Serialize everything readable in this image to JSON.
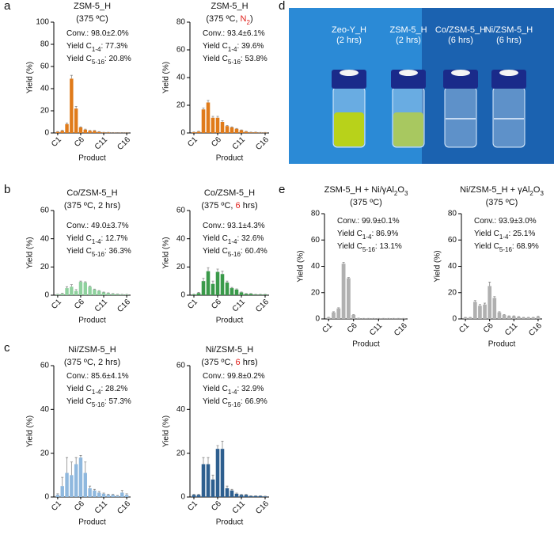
{
  "panel_labels": [
    "a",
    "b",
    "c",
    "d",
    "e"
  ],
  "photo": {
    "labels": [
      [
        "Zeo-Y_H",
        "(2 hrs)"
      ],
      [
        "ZSM-5_H",
        "(2 hrs)"
      ],
      [
        "Co/ZSM-5_H",
        "(6 hrs)"
      ],
      [
        "Ni/ZSM-5_H",
        "(6 hrs)"
      ]
    ]
  },
  "chart_data": [
    {
      "type": "bar",
      "title": [
        "ZSM-5_H",
        "(375 ºC)"
      ],
      "annotations": [
        "Conv.: 98.0±2.0%",
        [
          "Yield C",
          {
            "text": "1-4",
            "sub": true
          },
          ": 77.3%"
        ],
        [
          "Yield C",
          {
            "text": "5-16",
            "sub": true
          },
          ": 20.8%"
        ]
      ],
      "categories": [
        "C1",
        null,
        null,
        null,
        null,
        "C6",
        null,
        null,
        null,
        null,
        "C11",
        null,
        null,
        null,
        null,
        "C16"
      ],
      "values": [
        1,
        2,
        8,
        49,
        22,
        5,
        3,
        2,
        2,
        1,
        0.5,
        0.5,
        0.3,
        0.3,
        0.3,
        0.3
      ],
      "errors": [
        0.3,
        0.5,
        1,
        3,
        2,
        0.5,
        0.5,
        0.3,
        0.3,
        0.2,
        0.1,
        0.1,
        0.1,
        0.1,
        0.1,
        0.1
      ],
      "color": "#e07b1a",
      "ylim": [
        0,
        100
      ],
      "yticks": [
        0,
        20,
        40,
        60,
        80,
        100
      ],
      "xlabel": "Product",
      "ylabel": "Yield (%)"
    },
    {
      "type": "bar",
      "title": [
        "ZSM-5_H",
        [
          "(375 ºC, ",
          {
            "text": "N",
            "color": "#e0201b"
          },
          {
            "text": "2",
            "sub": true,
            "color": "#e0201b"
          },
          ")"
        ]
      ],
      "annotations": [
        "Conv.: 93.4±6.1%",
        [
          "Yield C",
          {
            "text": "1-4",
            "sub": true
          },
          ": 39.6%"
        ],
        [
          "Yield C",
          {
            "text": "5-16",
            "sub": true
          },
          ": 53.8%"
        ]
      ],
      "categories": [
        "C1",
        null,
        null,
        null,
        null,
        "C6",
        null,
        null,
        null,
        null,
        "C11",
        null,
        null,
        null,
        null,
        "C16"
      ],
      "values": [
        0.5,
        1,
        17,
        22,
        11,
        11,
        8,
        5,
        4,
        3,
        2,
        1,
        0.5,
        0.5,
        0.3,
        0.3
      ],
      "errors": [
        0.2,
        0.3,
        1,
        1.5,
        1,
        1,
        0.8,
        0.5,
        0.4,
        0.3,
        0.2,
        0.2,
        0.1,
        0.1,
        0.1,
        0.1
      ],
      "color": "#e07b1a",
      "ylim": [
        0,
        80
      ],
      "yticks": [
        0,
        20,
        40,
        60,
        80
      ],
      "xlabel": "Product",
      "ylabel": "Yield (%)"
    },
    {
      "type": "bar",
      "title": [
        "Co/ZSM-5_H",
        "(375 ºC, 2 hrs)"
      ],
      "annotations": [
        "Conv.: 49.0±3.7%",
        [
          "Yield C",
          {
            "text": "1-4",
            "sub": true
          },
          ": 12.7%"
        ],
        [
          "Yield C",
          {
            "text": "5-16",
            "sub": true
          },
          ": 36.3%"
        ]
      ],
      "categories": [
        "C1",
        null,
        null,
        null,
        null,
        "C6",
        null,
        null,
        null,
        null,
        "C11",
        null,
        null,
        null,
        null,
        "C16"
      ],
      "values": [
        0.5,
        1,
        5,
        6,
        3,
        9.5,
        9,
        6,
        4,
        3,
        2,
        1.5,
        1,
        0.8,
        0.5,
        0.5
      ],
      "errors": [
        0.2,
        0.3,
        1,
        1.5,
        1,
        0.5,
        0.5,
        0.5,
        0.3,
        0.3,
        0.2,
        0.2,
        0.1,
        0.1,
        0.1,
        0.1
      ],
      "color": "#8fd19e",
      "ylim": [
        0,
        60
      ],
      "yticks": [
        0,
        20,
        40,
        60
      ],
      "xlabel": "Product",
      "ylabel": "Yield (%)"
    },
    {
      "type": "bar",
      "title": [
        "Co/ZSM-5_H",
        [
          "(375 ºC, ",
          {
            "text": "6",
            "color": "#e0201b"
          },
          " hrs)"
        ]
      ],
      "annotations": [
        "Conv.: 93.1±4.3%",
        [
          "Yield C",
          {
            "text": "1-4",
            "sub": true
          },
          ": 32.6%"
        ],
        [
          "Yield C",
          {
            "text": "5-16",
            "sub": true
          },
          ": 60.4%"
        ]
      ],
      "categories": [
        "C1",
        null,
        null,
        null,
        null,
        "C6",
        null,
        null,
        null,
        null,
        "C11",
        null,
        null,
        null,
        null,
        "C16"
      ],
      "values": [
        0.5,
        1.5,
        10,
        17,
        8,
        16.5,
        15,
        9,
        5,
        4,
        2,
        1,
        1,
        0.5,
        0.5,
        0.5
      ],
      "errors": [
        0.2,
        0.5,
        2,
        2.5,
        2,
        2,
        2,
        1,
        0.5,
        0.5,
        0.3,
        0.2,
        0.2,
        0.1,
        0.1,
        0.1
      ],
      "color": "#3a9a4a",
      "ylim": [
        0,
        60
      ],
      "yticks": [
        0,
        20,
        40,
        60
      ],
      "xlabel": "Product",
      "ylabel": "Yield (%)"
    },
    {
      "type": "bar",
      "title": [
        "Ni/ZSM-5_H",
        "(375 ºC, 2 hrs)"
      ],
      "annotations": [
        "Conv.: 85.6±4.1%",
        [
          "Yield C",
          {
            "text": "1-4",
            "sub": true
          },
          ": 28.2%"
        ],
        [
          "Yield C",
          {
            "text": "5-16",
            "sub": true
          },
          ": 57.3%"
        ]
      ],
      "categories": [
        "C1",
        null,
        null,
        null,
        null,
        "C6",
        null,
        null,
        null,
        null,
        "C11",
        null,
        null,
        null,
        null,
        "C16"
      ],
      "values": [
        1,
        5,
        11,
        10,
        15,
        18,
        11,
        4,
        3,
        2,
        1.5,
        1,
        1,
        0.5,
        2,
        1
      ],
      "errors": [
        0.5,
        4,
        7,
        6,
        3,
        1,
        5,
        1,
        0.5,
        0.5,
        0.3,
        0.3,
        0.2,
        0.2,
        1,
        0.5
      ],
      "color": "#8fb8de",
      "ylim": [
        0,
        60
      ],
      "yticks": [
        0,
        20,
        40,
        60
      ],
      "xlabel": "Product",
      "ylabel": "Yield (%)"
    },
    {
      "type": "bar",
      "title": [
        "Ni/ZSM-5_H",
        [
          "(375 ºC, ",
          {
            "text": "6",
            "color": "#e0201b"
          },
          " hrs)"
        ]
      ],
      "annotations": [
        "Conv.: 99.8±0.2%",
        [
          "Yield C",
          {
            "text": "1-4",
            "sub": true
          },
          ": 32.9%"
        ],
        [
          "Yield C",
          {
            "text": "5-16",
            "sub": true
          },
          ": 66.9%"
        ]
      ],
      "categories": [
        "C1",
        null,
        null,
        null,
        null,
        "C6",
        null,
        null,
        null,
        null,
        "C11",
        null,
        null,
        null,
        null,
        "C16"
      ],
      "values": [
        1,
        1,
        15,
        15,
        8,
        22,
        22,
        4,
        3,
        1.5,
        1,
        1,
        0.5,
        0.5,
        0.5,
        0.3
      ],
      "errors": [
        0.3,
        0.3,
        3,
        3,
        2,
        1.5,
        3.5,
        1,
        0.5,
        0.3,
        0.2,
        0.2,
        0.1,
        0.1,
        0.1,
        0.1
      ],
      "color": "#2e5f8f",
      "ylim": [
        0,
        60
      ],
      "yticks": [
        0,
        20,
        40,
        60
      ],
      "xlabel": "Product",
      "ylabel": "Yield (%)"
    },
    {
      "type": "bar",
      "title": [
        [
          "ZSM-5_H + Ni/γAl",
          {
            "text": "2",
            "sub": true
          },
          "O",
          {
            "text": "3",
            "sub": true
          }
        ],
        "(375 ºC)"
      ],
      "annotations": [
        "Conv.: 99.9±0.1%",
        [
          "Yield C",
          {
            "text": "1-4",
            "sub": true
          },
          ": 86.9%"
        ],
        [
          "Yield C",
          {
            "text": "5-16",
            "sub": true
          },
          ": 13.1%"
        ]
      ],
      "categories": [
        "C1",
        null,
        null,
        null,
        null,
        "C6",
        null,
        null,
        null,
        null,
        "C11",
        null,
        null,
        null,
        null,
        "C16"
      ],
      "values": [
        1,
        5,
        8,
        42,
        31,
        3,
        0.5,
        0.3,
        0.3,
        0.3,
        0.3,
        0.3,
        0.3,
        0.3,
        0.3,
        0.3
      ],
      "errors": [
        0.3,
        0.5,
        0.5,
        1,
        0.5,
        0.3,
        0.1,
        0.1,
        0.1,
        0.1,
        0.1,
        0.1,
        0.1,
        0.1,
        0.1,
        0.1
      ],
      "color": "#b0b0b0",
      "ylim": [
        0,
        80
      ],
      "yticks": [
        0,
        20,
        40,
        60,
        80
      ],
      "xlabel": "Product",
      "ylabel": "Yield (%)"
    },
    {
      "type": "bar",
      "title": [
        [
          "Ni/ZSM-5_H + γAl",
          {
            "text": "2",
            "sub": true
          },
          "O",
          {
            "text": "3",
            "sub": true
          }
        ],
        "(375 ºC)"
      ],
      "annotations": [
        "Conv.: 93.9±3.0%",
        [
          "Yield C",
          {
            "text": "1-4",
            "sub": true
          },
          ": 25.1%"
        ],
        [
          "Yield C",
          {
            "text": "5-16",
            "sub": true
          },
          ": 68.9%"
        ]
      ],
      "categories": [
        "C1",
        null,
        null,
        null,
        null,
        "C6",
        null,
        null,
        null,
        null,
        "C11",
        null,
        null,
        null,
        null,
        "C16"
      ],
      "values": [
        1,
        1,
        13,
        10,
        11,
        25,
        16,
        5,
        3,
        2,
        2,
        1.5,
        1,
        1,
        1,
        1.5
      ],
      "errors": [
        0.2,
        0.2,
        1,
        1,
        1,
        3,
        1,
        0.5,
        0.3,
        0.3,
        0.3,
        0.2,
        0.2,
        0.2,
        0.2,
        0.5
      ],
      "color": "#b0b0b0",
      "ylim": [
        0,
        80
      ],
      "yticks": [
        0,
        20,
        40,
        60,
        80
      ],
      "xlabel": "Product",
      "ylabel": "Yield (%)"
    }
  ]
}
